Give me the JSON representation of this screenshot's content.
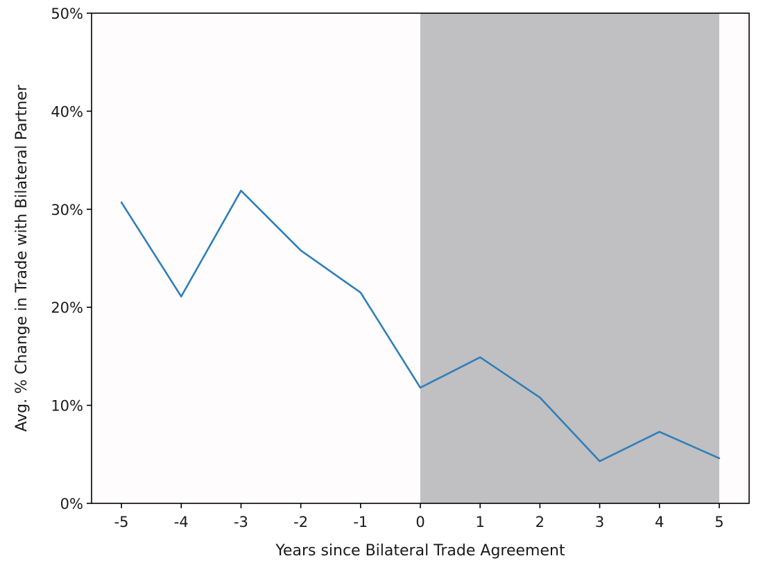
{
  "chart_data": {
    "type": "line",
    "title": "",
    "xlabel": "Years since Bilateral Trade Agreement",
    "ylabel": "Avg. % Change in Trade with Bilateral Partner",
    "x": [
      -5,
      -4,
      -3,
      -2,
      -1,
      0,
      1,
      2,
      3,
      4,
      5
    ],
    "x_tick_labels": [
      "-5",
      "-4",
      "-3",
      "-2",
      "-1",
      "0",
      "1",
      "2",
      "3",
      "4",
      "5"
    ],
    "y_ticks": [
      0,
      10,
      20,
      30,
      40,
      50
    ],
    "y_tick_labels": [
      "0%",
      "10%",
      "20%",
      "30%",
      "40%",
      "50%"
    ],
    "xlim": [
      -5.5,
      5.5
    ],
    "ylim": [
      0,
      50
    ],
    "grid": false,
    "series": [
      {
        "values": [
          30.7,
          21.1,
          31.9,
          25.8,
          21.5,
          11.8,
          14.9,
          10.8,
          4.3,
          7.3,
          4.6
        ],
        "color": "#2e7fb8"
      }
    ],
    "shaded_region": {
      "x_range": [
        0,
        5
      ],
      "color": "#c0bfc2"
    },
    "plot_background": "#fffcfd"
  }
}
